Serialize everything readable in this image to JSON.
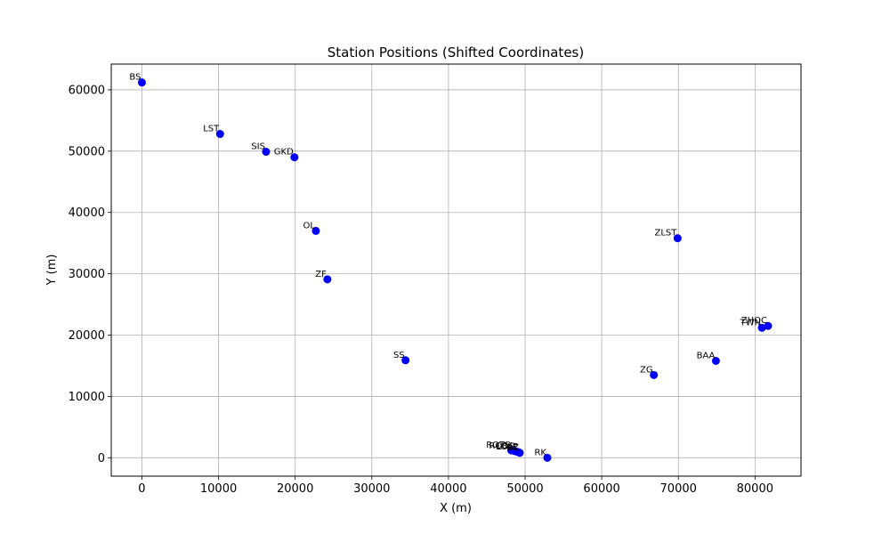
{
  "chart_data": {
    "type": "scatter",
    "title": "Station Positions (Shifted Coordinates)",
    "xlabel": "X (m)",
    "ylabel": "Y (m)",
    "xlim": [
      -4000,
      86000
    ],
    "ylim": [
      -3000,
      64200
    ],
    "xticks": [
      0,
      10000,
      20000,
      30000,
      40000,
      50000,
      60000,
      70000,
      80000
    ],
    "yticks": [
      0,
      10000,
      20000,
      30000,
      40000,
      50000,
      60000
    ],
    "grid": true,
    "marker_color": "#0000ff",
    "points": [
      {
        "label": "BS",
        "x": 0,
        "y": 61200
      },
      {
        "label": "LST",
        "x": 10200,
        "y": 52800
      },
      {
        "label": "SIS",
        "x": 16200,
        "y": 49900
      },
      {
        "label": "GKD",
        "x": 19900,
        "y": 49000
      },
      {
        "label": "OL",
        "x": 22700,
        "y": 37000
      },
      {
        "label": "ZF",
        "x": 24200,
        "y": 29100
      },
      {
        "label": "SS",
        "x": 34400,
        "y": 15900
      },
      {
        "label": "ZLST",
        "x": 69900,
        "y": 35800
      },
      {
        "label": "ZHOC",
        "x": 81700,
        "y": 21500
      },
      {
        "label": "TWN",
        "x": 80900,
        "y": 21200
      },
      {
        "label": "BAA",
        "x": 74900,
        "y": 15800
      },
      {
        "label": "ZG",
        "x": 66800,
        "y": 13500
      },
      {
        "label": "ROTS",
        "x": 48200,
        "y": 1200
      },
      {
        "label": "ROSS",
        "x": 48600,
        "y": 1100
      },
      {
        "label": "LOG",
        "x": 48900,
        "y": 1000
      },
      {
        "label": "LOLE",
        "x": 49200,
        "y": 900
      },
      {
        "label": "BZ",
        "x": 49300,
        "y": 800
      },
      {
        "label": "RK",
        "x": 52900,
        "y": 0
      }
    ]
  }
}
